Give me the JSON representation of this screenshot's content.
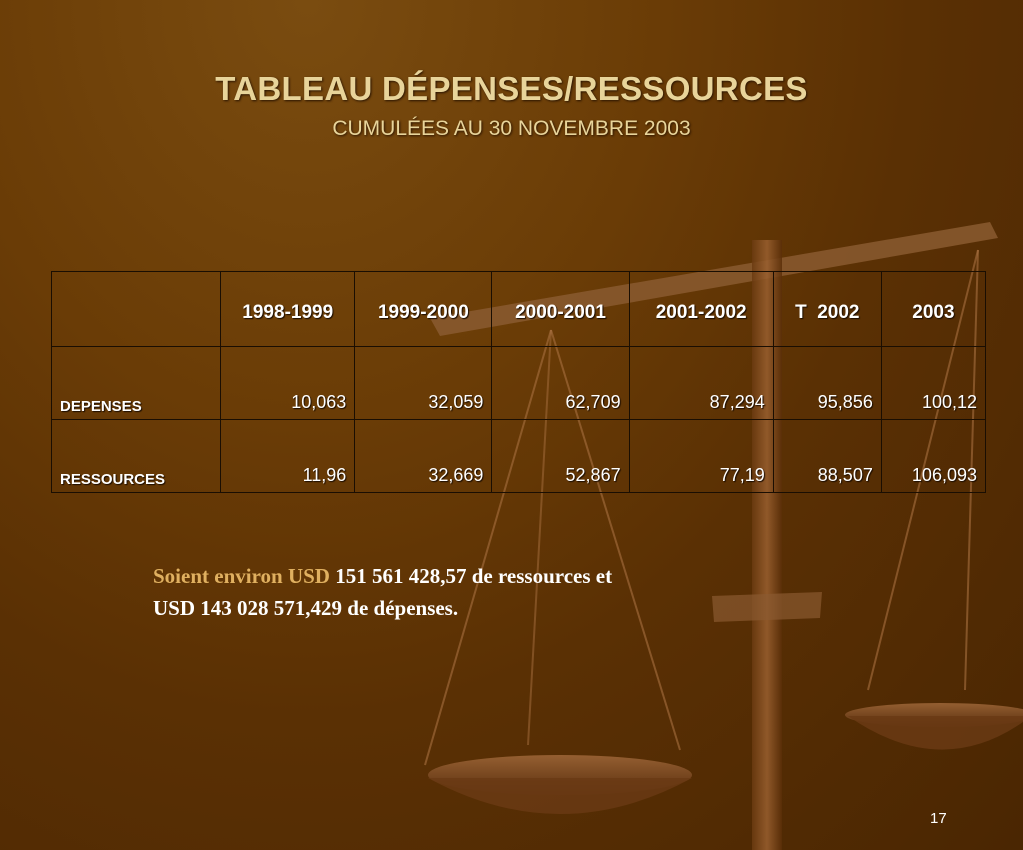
{
  "slide": {
    "title": "TABLEAU DÉPENSES/RESSOURCES",
    "subtitle": "CUMULÉES AU 30 NOVEMBRE 2003",
    "page_number": "17"
  },
  "table": {
    "corner": "",
    "headers": [
      "1998-1999",
      "1999-2000",
      "2000-2001",
      "2001-2002",
      "T  2002",
      "2003"
    ],
    "rows": [
      {
        "label": "DEPENSES",
        "values": [
          "10,063",
          "32,059",
          "62,709",
          "87,294",
          "95,856",
          "100,12"
        ]
      },
      {
        "label": "RESSOURCES",
        "values": [
          "11,96",
          "32,669",
          "52,867",
          "77,19",
          "88,507",
          "106,093"
        ]
      }
    ]
  },
  "summary": {
    "prefix": "Soient environ USD ",
    "line1_rest": "151 561 428,57 de ressources et",
    "line2": "USD 143 028 571,429 de dépenses."
  },
  "colors": {
    "background": "#5a3004",
    "title": "#e8d49a",
    "accent_text": "#e0b060",
    "text": "#ffffff"
  },
  "decorations": {
    "background_image": "scales-of-justice"
  }
}
